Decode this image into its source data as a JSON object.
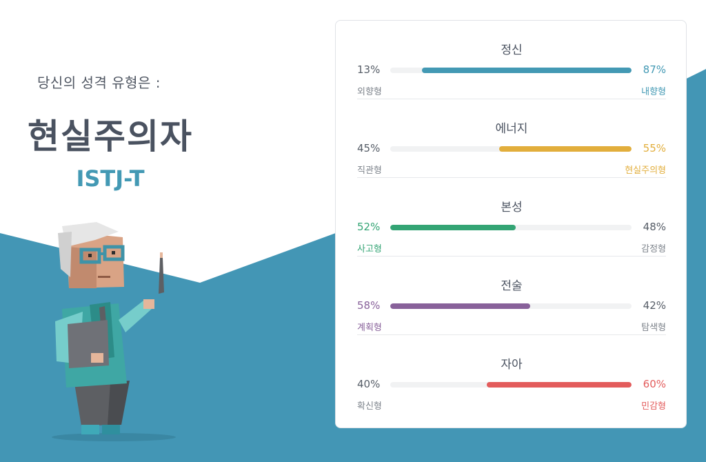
{
  "result": {
    "intro": "당신의 성격 유형은 :",
    "type_name": "현실주의자",
    "type_code": "ISTJ-T"
  },
  "colors": {
    "background_blue": "#4396b5",
    "mind": "#4399b4",
    "energy": "#e2ae3c",
    "nature": "#33a474",
    "tactics": "#88619a",
    "identity": "#e35c5c",
    "neutral_text": "#555c66"
  },
  "scales": [
    {
      "title": "정신",
      "left_percent": "13%",
      "left_trait": "외향형",
      "right_percent": "87%",
      "right_trait": "내향형",
      "dominant": "right",
      "dominant_fraction": 0.87,
      "color": "#4399b4"
    },
    {
      "title": "에너지",
      "left_percent": "45%",
      "left_trait": "직관형",
      "right_percent": "55%",
      "right_trait": "현실주의형",
      "dominant": "right",
      "dominant_fraction": 0.55,
      "color": "#e2ae3c"
    },
    {
      "title": "본성",
      "left_percent": "52%",
      "left_trait": "사고형",
      "right_percent": "48%",
      "right_trait": "감정형",
      "dominant": "left",
      "dominant_fraction": 0.52,
      "color": "#33a474"
    },
    {
      "title": "전술",
      "left_percent": "58%",
      "left_trait": "계획형",
      "right_percent": "42%",
      "right_trait": "탐색형",
      "dominant": "left",
      "dominant_fraction": 0.58,
      "color": "#88619a"
    },
    {
      "title": "자아",
      "left_percent": "40%",
      "left_trait": "확신형",
      "right_percent": "60%",
      "right_trait": "민감형",
      "dominant": "right",
      "dominant_fraction": 0.6,
      "color": "#e35c5c"
    }
  ]
}
